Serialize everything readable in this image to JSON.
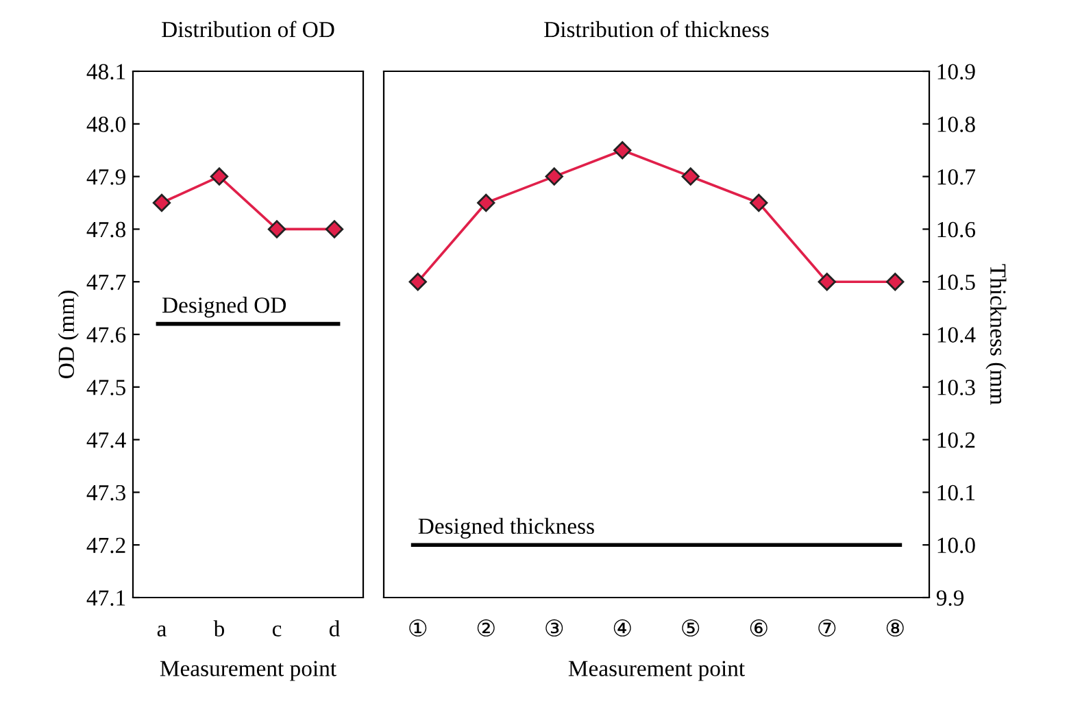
{
  "chart_data": [
    {
      "type": "line",
      "title": "Distribution of OD",
      "xlabel": "Measurement point",
      "ylabel": "OD (mm)",
      "categories": [
        "a",
        "b",
        "c",
        "d"
      ],
      "series": [
        {
          "color": "#e0204a",
          "values": [
            47.85,
            47.9,
            47.8,
            47.8
          ]
        }
      ],
      "ylim": [
        47.1,
        48.1
      ],
      "yticks": [
        47.1,
        47.2,
        47.3,
        47.4,
        47.5,
        47.6,
        47.7,
        47.8,
        47.9,
        {
          "value": 48.0,
          "label": "48.0"
        },
        48.1
      ],
      "ref_lines": [
        {
          "axis": "y",
          "value": 47.62,
          "label": "Designed OD",
          "color": "#000000"
        }
      ],
      "marker": "diamond",
      "grid": false,
      "legend": false
    },
    {
      "type": "line",
      "title": "Distribution of thickness",
      "xlabel": "Measurement point",
      "y2label": "Thickness (mm",
      "categories": [
        "①",
        "②",
        "③",
        "④",
        "⑤",
        "⑥",
        "⑦",
        "⑧"
      ],
      "series": [
        {
          "color": "#e0204a",
          "axis": "y2",
          "values": [
            10.5,
            10.65,
            10.7,
            10.75,
            10.7,
            10.65,
            10.5,
            10.5
          ]
        }
      ],
      "y2lim": [
        9.9,
        10.9
      ],
      "y2ticks": [
        9.9,
        {
          "value": 10.0,
          "label": "10.0"
        },
        10.1,
        10.2,
        10.3,
        10.4,
        10.5,
        10.6,
        10.7,
        10.8,
        10.9
      ],
      "ref_lines": [
        {
          "axis": "y2",
          "value": 10.0,
          "label": "Designed thickness",
          "color": "#000000"
        }
      ],
      "marker": "diamond",
      "grid": false,
      "legend": false
    }
  ]
}
